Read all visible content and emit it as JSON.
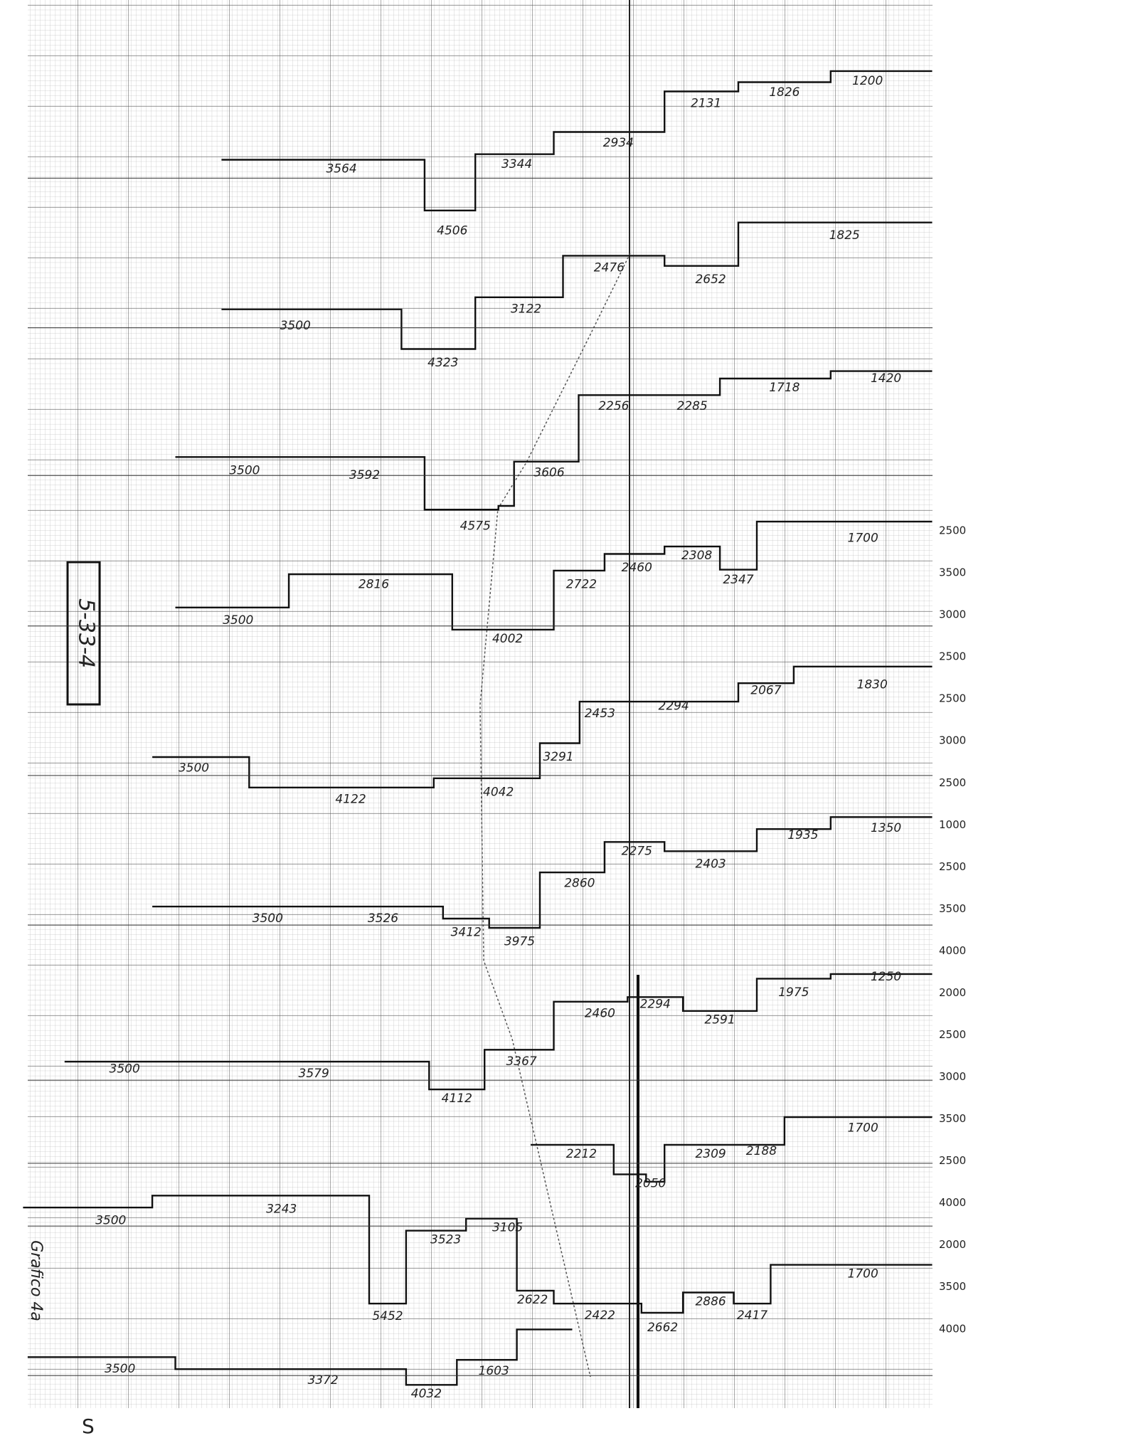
{
  "sheet_id": "5-33-4",
  "caption": "Grafico 4a",
  "corner_mark": "S",
  "profiles": [
    {
      "labels": [
        "3564",
        "4506",
        "3344",
        "2934",
        "2131",
        "1826",
        "1200"
      ]
    },
    {
      "labels": [
        "3500",
        "4323",
        "3122",
        "2476",
        "2652",
        "1825"
      ]
    },
    {
      "labels": [
        "3500",
        "3592",
        "4575",
        "3606",
        "2256",
        "2285",
        "1718",
        "1420"
      ]
    },
    {
      "labels": [
        "3500",
        "2816",
        "4002",
        "2722",
        "2460",
        "2308",
        "2347",
        "1700"
      ]
    },
    {
      "labels": [
        "3500",
        "4122",
        "4042",
        "3291",
        "2453",
        "2294",
        "2067",
        "1830"
      ]
    },
    {
      "labels": [
        "3500",
        "3526",
        "3412",
        "3975",
        "2860",
        "2275",
        "2403",
        "1935",
        "1350"
      ]
    },
    {
      "labels": [
        "3500",
        "3579",
        "4112",
        "3367",
        "2460",
        "2294",
        "2591",
        "1975",
        "1250"
      ]
    },
    {
      "labels": [
        "2212",
        "2050",
        "2309",
        "2188",
        "1700"
      ]
    },
    {
      "labels": [
        "3500",
        "3243",
        "5452",
        "3523",
        "3105",
        "2622",
        "2422",
        "2662",
        "2886",
        "2417",
        "1700"
      ]
    },
    {
      "labels": [
        "3500",
        "3372",
        "4032",
        "1603"
      ]
    }
  ],
  "margin_numbers": [
    "2500",
    "3500",
    "3000",
    "2500",
    "2500",
    "3000",
    "2500",
    "1000",
    "2500",
    "3500",
    "4000",
    "2000",
    "2500",
    "3000",
    "3500",
    "2500",
    "4000",
    "2000",
    "3500",
    "4000"
  ]
}
